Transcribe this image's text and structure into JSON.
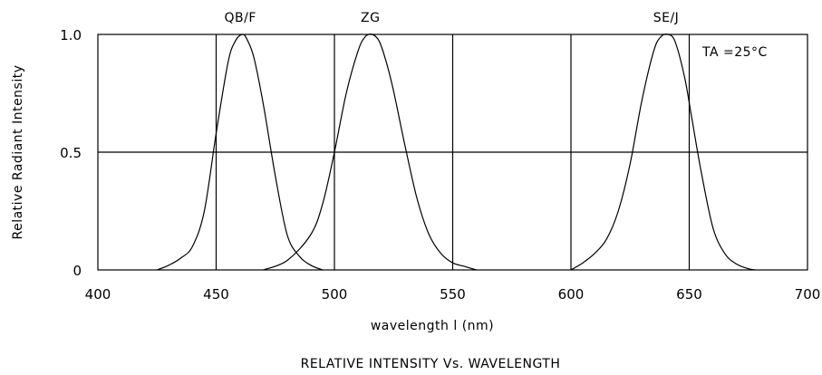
{
  "chart_data": {
    "type": "line",
    "title": "RELATIVE INTENSITY Vs. WAVELENGTH",
    "xlabel": "wavelength l  (nm)",
    "ylabel": "Relative Radiant Intensity",
    "xlim": [
      400,
      700
    ],
    "ylim": [
      0,
      1.0
    ],
    "x_ticks": [
      400,
      450,
      500,
      550,
      600,
      650,
      700
    ],
    "y_ticks": [
      {
        "value": 0,
        "label": "0"
      },
      {
        "value": 0.5,
        "label": "0.5"
      },
      {
        "value": 1.0,
        "label": "1.0"
      }
    ],
    "grid": true,
    "annotation": "TA =25°C",
    "series": [
      {
        "name": "QB/F",
        "x": [
          425,
          430,
          435,
          440,
          445,
          450,
          455,
          458,
          461,
          463,
          466,
          470,
          475,
          480,
          485,
          490,
          495
        ],
        "y": [
          0.0,
          0.02,
          0.05,
          0.1,
          0.25,
          0.58,
          0.88,
          0.97,
          1.0,
          0.98,
          0.9,
          0.7,
          0.4,
          0.15,
          0.06,
          0.02,
          0.0
        ]
      },
      {
        "name": "ZG",
        "x": [
          470,
          480,
          490,
          495,
          500,
          505,
          510,
          513,
          516,
          519,
          522,
          525,
          530,
          535,
          540,
          545,
          550,
          555,
          560
        ],
        "y": [
          0.0,
          0.04,
          0.15,
          0.28,
          0.5,
          0.75,
          0.93,
          0.99,
          1.0,
          0.97,
          0.88,
          0.76,
          0.52,
          0.3,
          0.15,
          0.07,
          0.03,
          0.015,
          0.0
        ]
      },
      {
        "name": "SE/J",
        "x": [
          600,
          605,
          610,
          615,
          620,
          625,
          630,
          635,
          638,
          641,
          644,
          648,
          651,
          655,
          660,
          665,
          670,
          675,
          678
        ],
        "y": [
          0.0,
          0.03,
          0.07,
          0.13,
          0.25,
          0.45,
          0.72,
          0.93,
          0.99,
          1.0,
          0.97,
          0.82,
          0.65,
          0.42,
          0.18,
          0.07,
          0.025,
          0.005,
          0.0
        ]
      }
    ]
  }
}
